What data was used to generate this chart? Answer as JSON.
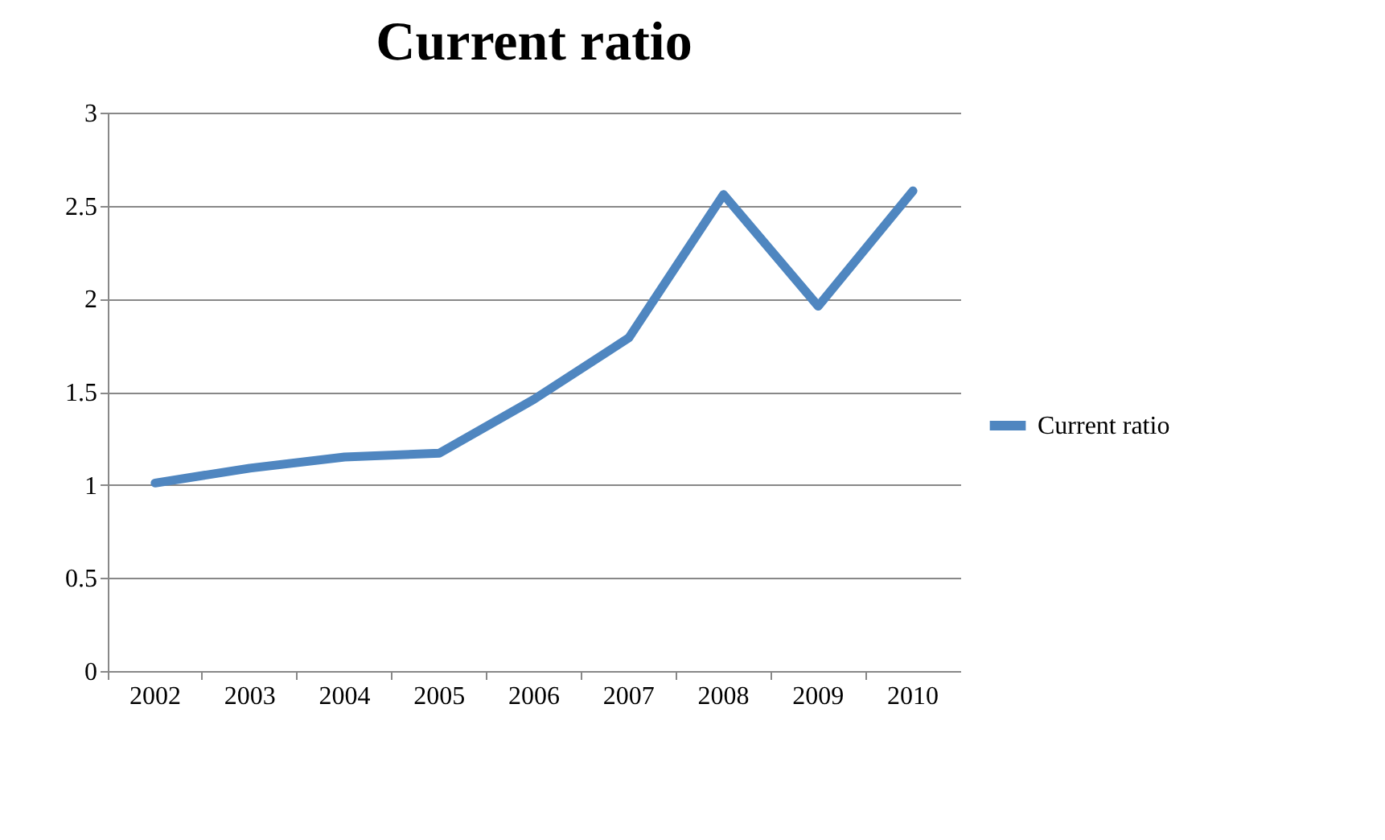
{
  "chart_data": {
    "type": "line",
    "title": "Current ratio",
    "categories": [
      "2002",
      "2003",
      "2004",
      "2005",
      "2006",
      "2007",
      "2008",
      "2009",
      "2010"
    ],
    "series": [
      {
        "name": "Current ratio",
        "color": "#4f86c0",
        "values": [
          1.01,
          1.09,
          1.15,
          1.17,
          1.46,
          1.79,
          2.56,
          1.96,
          2.58
        ]
      }
    ],
    "ylim": [
      0,
      3
    ],
    "yticks": [
      0,
      0.5,
      1,
      1.5,
      2,
      2.5,
      3
    ],
    "grid": "y",
    "legend": "right",
    "marker": "none",
    "line_style": "solid"
  }
}
